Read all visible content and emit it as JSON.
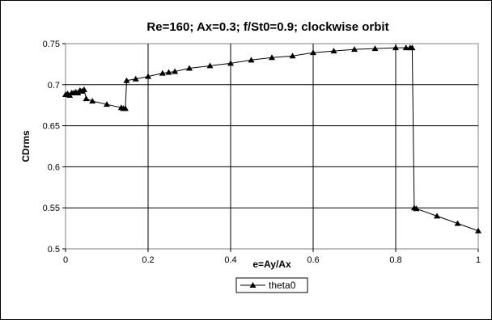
{
  "chart_data": {
    "type": "line",
    "title": "Re=160; Ax=0.3; f/St0=0.9; clockwise orbit",
    "xlabel": "e=Ay/Ax",
    "ylabel": "CDrms",
    "xlim": [
      0,
      1
    ],
    "ylim": [
      0.5,
      0.75
    ],
    "xticks": [
      "0",
      "0.2",
      "0.4",
      "0.6",
      "0.8",
      "1"
    ],
    "xtick_values": [
      0,
      0.2,
      0.4,
      0.6,
      0.8,
      1
    ],
    "yticks": [
      "0.5",
      "0.55",
      "0.6",
      "0.65",
      "0.7",
      "0.75"
    ],
    "ytick_values": [
      0.5,
      0.55,
      0.6,
      0.65,
      0.7,
      0.75
    ],
    "grid": true,
    "legend": "bottom-center",
    "series": [
      {
        "name": "theta0",
        "color": "#000000",
        "marker": "triangle",
        "x": [
          0,
          0.005,
          0.01,
          0.015,
          0.02,
          0.025,
          0.03,
          0.035,
          0.04,
          0.045,
          0.05,
          0.065,
          0.1,
          0.135,
          0.14,
          0.145,
          0.148,
          0.17,
          0.2,
          0.235,
          0.25,
          0.265,
          0.3,
          0.35,
          0.4,
          0.45,
          0.5,
          0.55,
          0.6,
          0.65,
          0.7,
          0.75,
          0.8,
          0.825,
          0.835,
          0.84,
          0.845,
          0.85,
          0.9,
          0.95,
          1.0
        ],
        "y": [
          0.688,
          0.689,
          0.687,
          0.69,
          0.69,
          0.691,
          0.69,
          0.693,
          0.692,
          0.694,
          0.683,
          0.68,
          0.676,
          0.672,
          0.671,
          0.671,
          0.705,
          0.707,
          0.71,
          0.714,
          0.715,
          0.716,
          0.72,
          0.723,
          0.726,
          0.73,
          0.733,
          0.735,
          0.739,
          0.741,
          0.743,
          0.744,
          0.745,
          0.745,
          0.745,
          0.745,
          0.55,
          0.549,
          0.54,
          0.531,
          0.522
        ]
      }
    ]
  }
}
